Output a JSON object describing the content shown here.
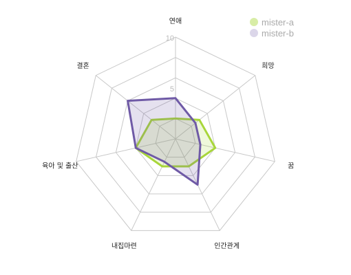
{
  "chart_data": {
    "type": "radar",
    "axes": [
      "연애",
      "희망",
      "꿈",
      "인간관계",
      "내집마련",
      "육아 및 출산",
      "결혼"
    ],
    "series": [
      {
        "name": "mister-a",
        "values": [
          2,
          3,
          4,
          3,
          3,
          4,
          3
        ],
        "color": "#a8d63a"
      },
      {
        "name": "mister-b",
        "values": [
          4,
          2.5,
          2.5,
          5,
          2.5,
          4,
          6
        ],
        "color": "#6f5aa6"
      }
    ],
    "range": [
      0,
      10
    ],
    "ticks": [
      "10",
      "5"
    ],
    "grid_levels": 5,
    "legend": "top-right"
  }
}
